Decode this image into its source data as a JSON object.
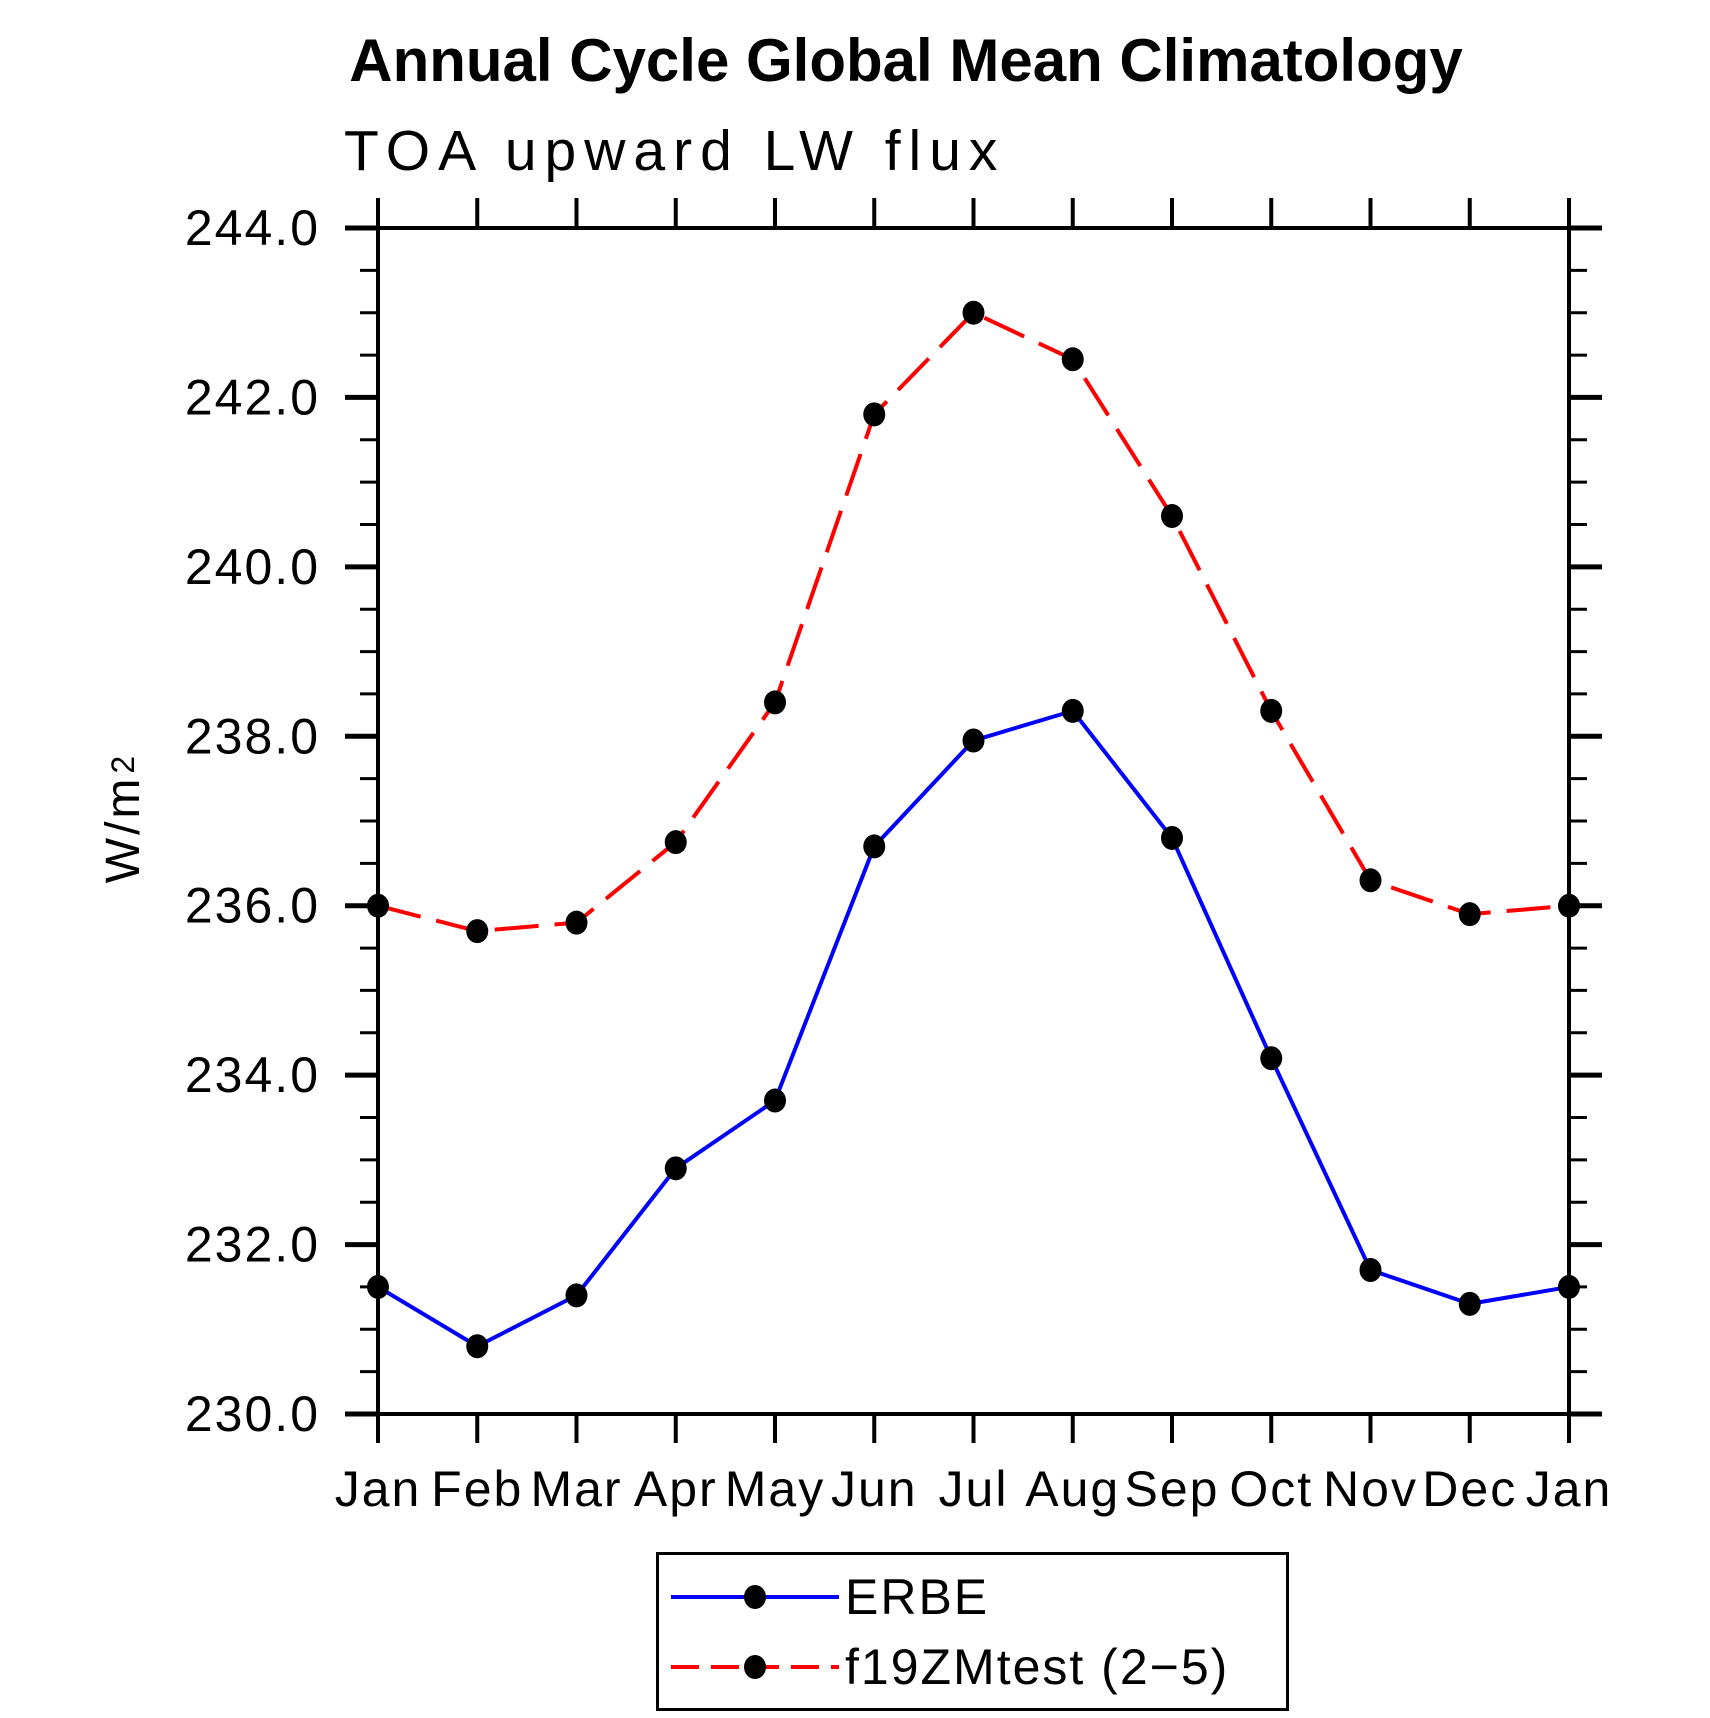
{
  "page": {
    "background_color": "#FFFFFF",
    "text_color": "#000000"
  },
  "chart_data": {
    "type": "line",
    "title": "Annual Cycle Global Mean Climatology",
    "subtitle": "TOA upward LW flux",
    "ylabel": "W/m²",
    "ylabel_base": "W/m",
    "ylabel_exponent": "2",
    "categories": [
      "Jan",
      "Feb",
      "Mar",
      "Apr",
      "May",
      "Jun",
      "Jul",
      "Aug",
      "Sep",
      "Oct",
      "Nov",
      "Dec",
      "Jan"
    ],
    "ylim": [
      230.0,
      244.0
    ],
    "ytick_major_step": 2.0,
    "ytick_minor_step": 0.5,
    "ytick_labels": [
      "244.0",
      "242.0",
      "240.0",
      "238.0",
      "236.0",
      "234.0",
      "232.0",
      "230.0"
    ],
    "grid": false,
    "axis_color": "#000000",
    "marker_color": "#000000",
    "marker_shape": "filled-circle",
    "legend_position": "below-plot-center",
    "series": [
      {
        "name": "ERBE",
        "color": "#0000FF",
        "line_style": "solid",
        "values": [
          231.5,
          230.8,
          231.4,
          232.9,
          233.7,
          236.7,
          237.95,
          238.3,
          236.8,
          234.2,
          231.7,
          231.3,
          231.5
        ]
      },
      {
        "name": "f19ZMtest (2−5)",
        "color": "#FF0000",
        "line_style": "dashed",
        "values": [
          236.0,
          235.7,
          235.8,
          236.75,
          238.4,
          241.8,
          243.0,
          242.45,
          240.6,
          238.3,
          236.3,
          235.9,
          236.0
        ]
      }
    ]
  }
}
